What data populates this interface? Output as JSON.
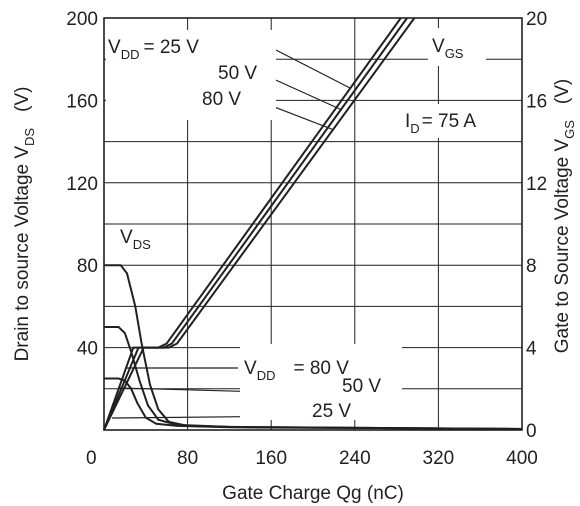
{
  "chart_data": {
    "type": "line",
    "title": "",
    "xlabel": "Gate Charge  Qg   (nC)",
    "ylabel_left_main": "Drain to source Voltage  V",
    "ylabel_left_sub": "DS",
    "ylabel_left_unit": "(V)",
    "ylabel_right_main": "Gate to Source Voltage  V",
    "ylabel_right_sub": "GS",
    "ylabel_right_unit": "(V)",
    "xlim": [
      0,
      400
    ],
    "ylim_left": [
      0,
      200
    ],
    "ylim_right": [
      0,
      20
    ],
    "xticks": [
      {
        "value": 0,
        "label": "0"
      },
      {
        "value": 80,
        "label": "80"
      },
      {
        "value": 160,
        "label": "160"
      },
      {
        "value": 240,
        "label": "240"
      },
      {
        "value": 320,
        "label": "320"
      },
      {
        "value": 400,
        "label": "400"
      }
    ],
    "yticks_left": [
      {
        "value": 40,
        "label": "40"
      },
      {
        "value": 80,
        "label": "80"
      },
      {
        "value": 120,
        "label": "120"
      },
      {
        "value": 160,
        "label": "160"
      },
      {
        "value": 200,
        "label": "200"
      }
    ],
    "yticks_right": [
      {
        "value": 0,
        "label": "0"
      },
      {
        "value": 4,
        "label": "4"
      },
      {
        "value": 8,
        "label": "8"
      },
      {
        "value": 12,
        "label": "12"
      },
      {
        "value": 16,
        "label": "16"
      },
      {
        "value": 20,
        "label": "20"
      }
    ],
    "grid": true,
    "series": [
      {
        "group": "VGS",
        "vdd": "25 V",
        "points": [
          [
            0,
            0
          ],
          [
            28,
            4
          ],
          [
            52,
            4
          ],
          [
            60,
            4.2
          ],
          [
            284,
            20
          ]
        ]
      },
      {
        "group": "VGS",
        "vdd": "50 V",
        "points": [
          [
            0,
            0
          ],
          [
            33,
            4
          ],
          [
            57,
            4
          ],
          [
            65,
            4.2
          ],
          [
            290,
            20
          ]
        ]
      },
      {
        "group": "VGS",
        "vdd": "80 V",
        "points": [
          [
            0,
            0
          ],
          [
            38,
            4
          ],
          [
            62,
            4
          ],
          [
            70,
            4.2
          ],
          [
            297,
            20
          ]
        ]
      },
      {
        "group": "VDS",
        "vdd": "80 V",
        "points": [
          [
            0,
            80
          ],
          [
            16,
            80
          ],
          [
            22,
            76
          ],
          [
            30,
            60
          ],
          [
            36,
            42
          ],
          [
            44,
            22
          ],
          [
            52,
            10
          ],
          [
            62,
            4
          ],
          [
            80,
            2
          ],
          [
            120,
            1.5
          ],
          [
            400,
            0.5
          ]
        ]
      },
      {
        "group": "VDS",
        "vdd": "50 V",
        "points": [
          [
            0,
            50
          ],
          [
            14,
            50
          ],
          [
            20,
            47
          ],
          [
            26,
            38
          ],
          [
            34,
            24
          ],
          [
            42,
            12
          ],
          [
            52,
            5
          ],
          [
            70,
            2.5
          ],
          [
            120,
            1.5
          ],
          [
            400,
            0.5
          ]
        ]
      },
      {
        "group": "VDS",
        "vdd": "25 V",
        "points": [
          [
            0,
            25
          ],
          [
            14,
            25
          ],
          [
            20,
            24
          ],
          [
            26,
            20
          ],
          [
            32,
            13
          ],
          [
            40,
            6
          ],
          [
            50,
            3
          ],
          [
            70,
            2
          ],
          [
            120,
            1.3
          ],
          [
            400,
            0.5
          ]
        ]
      }
    ],
    "annotations": {
      "vgs_block": {
        "label_main": "V",
        "label_sub": "GS",
        "vdd_prefix": "V",
        "vdd_sub": "DD",
        "vdd_first": "= 25 V",
        "vdd_second": "50 V",
        "vdd_third": "80 V"
      },
      "id_label_main": "I",
      "id_label_sub": "D",
      "id_label_value": "= 75 A",
      "vds_block": {
        "label_main": "V",
        "label_sub": "DS",
        "vdd_prefix": "V",
        "vdd_sub": "DD",
        "vdd_first": "= 80 V",
        "vdd_second": "50 V",
        "vdd_third": "25 V"
      }
    }
  }
}
